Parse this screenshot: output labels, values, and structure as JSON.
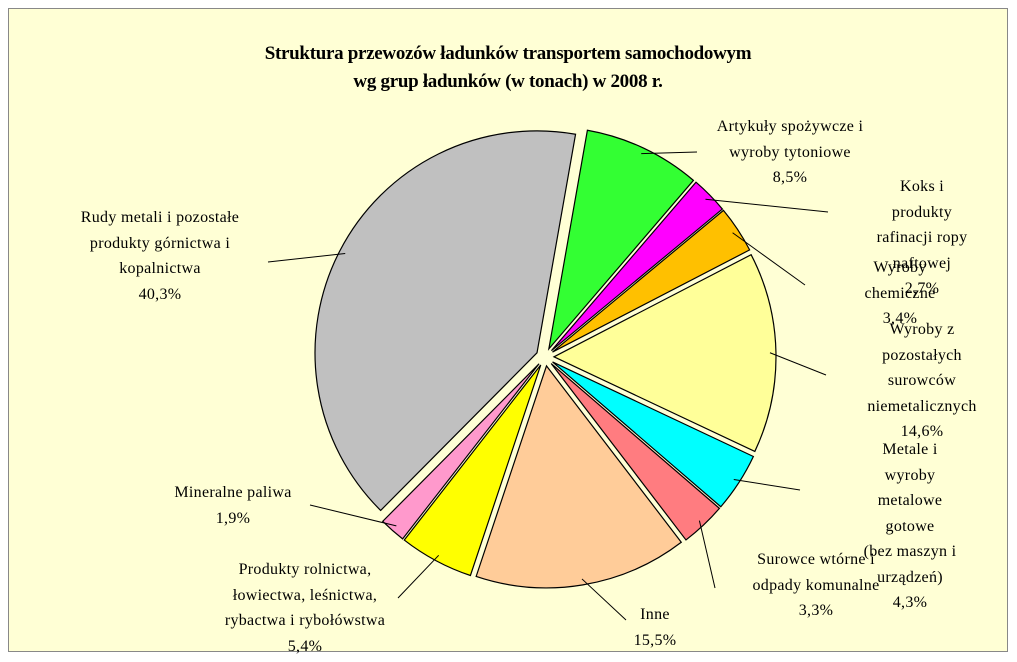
{
  "chart_data": {
    "type": "pie",
    "title": "Struktura przewozów ładunków transportem samochodowym\nwg grup ładunków (w tonach) w 2008 r.",
    "categories": [
      "Artykuły spożywcze i\nwyroby tytoniowe",
      "Koks i produkty\nrafinacji ropy naftowej",
      "Wyroby chemiczne",
      "Wyroby z pozostałych\nsurowców\nniemetalicznych",
      "Metale i wyroby\nmetalowe gotowe\n(bez maszyn i urządzeń)",
      "Surowce wtórne i\nodpady komunalne",
      "Inne",
      "Produkty rolnictwa,\nłowiectwa, leśnictwa,\nrybactwa i rybołówstwa",
      "Mineralne paliwa",
      "Rudy metali i pozostałe\nprodukty górnictwa i\nkopalnictwa"
    ],
    "values": [
      8.5,
      2.7,
      3.4,
      14.6,
      4.3,
      3.3,
      15.5,
      5.4,
      1.9,
      40.3
    ],
    "value_labels": [
      "8,5%",
      "2,7%",
      "3,4%",
      "14,6%",
      "4,3%",
      "3,3%",
      "15,5%",
      "5,4%",
      "1,9%",
      "40,3%"
    ],
    "colors": [
      "#33ff33",
      "#ff00ff",
      "#ffc000",
      "#ffff99",
      "#00ffff",
      "#ff7c80",
      "#ffcc99",
      "#ffff00",
      "#ff99cc",
      "#c0c0c0"
    ]
  }
}
